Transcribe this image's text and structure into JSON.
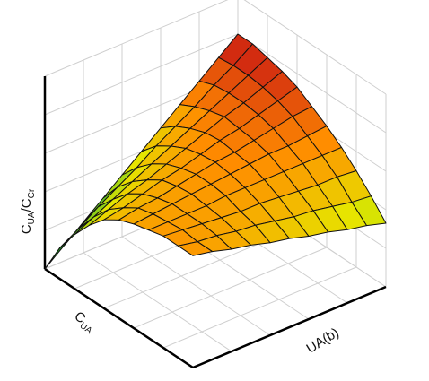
{
  "chart_data": {
    "type": "surface",
    "x_label": "C",
    "x_label_sub": "UA",
    "y_label": "UA(b)",
    "z_label": [
      "C",
      "UA",
      "/C",
      "Cr"
    ],
    "x": [
      0,
      0.1,
      0.2,
      0.3,
      0.4,
      0.5,
      0.6,
      0.7,
      0.8,
      0.9,
      1
    ],
    "y": [
      0,
      0.1,
      0.2,
      0.3,
      0.4,
      0.5,
      0.6,
      0.7,
      0.8,
      0.9,
      1
    ],
    "z": [
      [
        0,
        0.08,
        0.16,
        0.24,
        0.32,
        0.4,
        0.48,
        0.56,
        0.64,
        0.72,
        0.8
      ],
      [
        0.16,
        0.22,
        0.29,
        0.35,
        0.41,
        0.48,
        0.54,
        0.6,
        0.67,
        0.73,
        0.8
      ],
      [
        0.28,
        0.33,
        0.38,
        0.43,
        0.48,
        0.53,
        0.58,
        0.63,
        0.68,
        0.73,
        0.78
      ],
      [
        0.38,
        0.42,
        0.46,
        0.49,
        0.53,
        0.57,
        0.61,
        0.65,
        0.68,
        0.72,
        0.76
      ],
      [
        0.46,
        0.48,
        0.51,
        0.54,
        0.56,
        0.59,
        0.62,
        0.64,
        0.67,
        0.7,
        0.73
      ],
      [
        0.51,
        0.53,
        0.54,
        0.56,
        0.58,
        0.6,
        0.61,
        0.63,
        0.65,
        0.67,
        0.68
      ],
      [
        0.54,
        0.55,
        0.56,
        0.57,
        0.58,
        0.59,
        0.6,
        0.61,
        0.61,
        0.62,
        0.63
      ],
      [
        0.56,
        0.56,
        0.56,
        0.56,
        0.57,
        0.57,
        0.57,
        0.57,
        0.57,
        0.57,
        0.57
      ],
      [
        0.58,
        0.57,
        0.56,
        0.55,
        0.54,
        0.54,
        0.53,
        0.52,
        0.51,
        0.51,
        0.5
      ],
      [
        0.58,
        0.56,
        0.55,
        0.53,
        0.52,
        0.5,
        0.48,
        0.47,
        0.45,
        0.43,
        0.42
      ],
      [
        0.58,
        0.56,
        0.53,
        0.51,
        0.48,
        0.46,
        0.43,
        0.41,
        0.38,
        0.36,
        0.33
      ]
    ],
    "xlim": [
      0,
      1
    ],
    "ylim": [
      0,
      1
    ],
    "zlim": [
      0,
      1
    ],
    "xticks": [
      0,
      0.2,
      0.4,
      0.6,
      0.8,
      1
    ],
    "yticks": [
      0,
      0.2,
      0.4,
      0.6,
      0.8,
      1
    ],
    "zticks": [
      0,
      0.2,
      0.4,
      0.6,
      0.8,
      1
    ],
    "grid": true,
    "colormap": [
      "#0d3b0d",
      "#2eb82e",
      "#e6e600",
      "#ff8c00",
      "#c81414",
      "#5a0a0a"
    ],
    "edge_color": "#111111"
  }
}
